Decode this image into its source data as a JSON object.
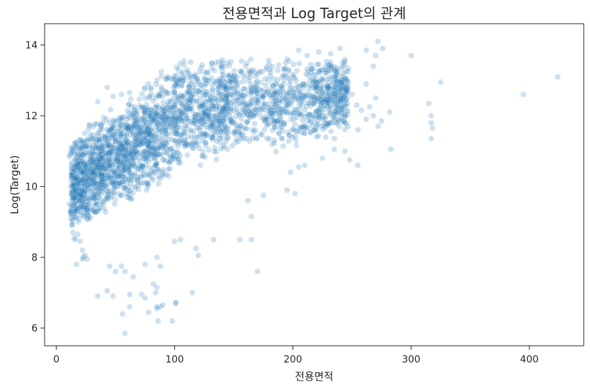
{
  "chart_data": {
    "type": "scatter",
    "title": "전용면적과 Log Target의 관계",
    "xlabel": "전용면적",
    "ylabel": "Log(Target)",
    "xlim": [
      -10,
      446
    ],
    "ylim": [
      5.5,
      14.6
    ],
    "xticks": [
      0,
      100,
      200,
      300,
      400
    ],
    "yticks": [
      6,
      8,
      10,
      12,
      14
    ],
    "grid": false,
    "legend": "none",
    "point_color": "#1f77b4",
    "point_opacity": 0.22,
    "series": [
      {
        "points": [
          [
            11,
            10.85
          ],
          [
            12,
            10.95
          ],
          [
            13,
            11.0
          ],
          [
            14,
            11.1
          ],
          [
            15,
            11.2
          ],
          [
            16,
            11.25
          ],
          [
            17,
            11.15
          ],
          [
            11,
            9.5
          ],
          [
            12,
            9.3
          ],
          [
            13,
            8.9
          ],
          [
            14,
            8.7
          ],
          [
            15,
            8.55
          ],
          [
            16,
            8.5
          ],
          [
            18,
            8.65
          ],
          [
            20,
            8.45
          ],
          [
            22,
            8.2
          ],
          [
            23,
            8.0
          ],
          [
            24,
            8.05
          ],
          [
            26,
            7.95
          ],
          [
            17,
            7.8
          ],
          [
            22,
            7.95
          ],
          [
            35,
            6.9
          ],
          [
            43,
            7.05
          ],
          [
            48,
            6.9
          ],
          [
            58,
            5.85
          ],
          [
            56,
            6.4
          ],
          [
            62,
            6.6
          ],
          [
            62,
            6.95
          ],
          [
            72,
            6.95
          ],
          [
            75,
            6.85
          ],
          [
            78,
            6.45
          ],
          [
            84,
            7.0
          ],
          [
            85,
            7.15
          ],
          [
            85,
            6.55
          ],
          [
            85,
            6.6
          ],
          [
            86,
            6.2
          ],
          [
            88,
            6.6
          ],
          [
            90,
            6.65
          ],
          [
            98,
            6.2
          ],
          [
            101,
            6.7
          ],
          [
            101,
            6.72
          ],
          [
            115,
            7.0
          ],
          [
            45,
            7.75
          ],
          [
            50,
            7.6
          ],
          [
            55,
            7.75
          ],
          [
            58,
            7.6
          ],
          [
            65,
            7.45
          ],
          [
            75,
            7.8
          ],
          [
            82,
            7.25
          ],
          [
            85,
            8.0
          ],
          [
            88,
            7.75
          ],
          [
            100,
            8.45
          ],
          [
            105,
            8.5
          ],
          [
            118,
            8.25
          ],
          [
            120,
            8.05
          ],
          [
            133,
            8.5
          ],
          [
            155,
            8.5
          ],
          [
            165,
            8.5
          ],
          [
            165,
            9.15
          ],
          [
            170,
            7.6
          ],
          [
            162,
            9.6
          ],
          [
            175,
            9.75
          ],
          [
            195,
            9.9
          ],
          [
            202,
            9.8
          ],
          [
            198,
            10.4
          ],
          [
            205,
            10.55
          ],
          [
            210,
            10.6
          ],
          [
            225,
            10.8
          ],
          [
            235,
            11.05
          ],
          [
            244,
            11.0
          ],
          [
            248,
            10.75
          ],
          [
            255,
            10.6
          ],
          [
            262,
            11.9
          ],
          [
            265,
            12.25
          ],
          [
            262,
            12.9
          ],
          [
            268,
            13.4
          ],
          [
            270,
            13.7
          ],
          [
            272,
            14.1
          ],
          [
            276,
            13.9
          ],
          [
            262,
            13.85
          ],
          [
            245,
            12.7
          ],
          [
            242,
            13.5
          ],
          [
            240,
            13.9
          ],
          [
            232,
            13.75
          ],
          [
            222,
            13.8
          ],
          [
            212,
            13.7
          ],
          [
            205,
            13.85
          ],
          [
            195,
            13.6
          ],
          [
            180,
            13.45
          ],
          [
            160,
            13.4
          ],
          [
            140,
            13.5
          ],
          [
            122,
            13.35
          ],
          [
            103,
            13.3
          ],
          [
            85,
            13.0
          ],
          [
            75,
            12.8
          ],
          [
            62,
            12.65
          ],
          [
            55,
            12.6
          ],
          [
            48,
            12.55
          ],
          [
            43,
            12.8
          ],
          [
            35,
            12.4
          ],
          [
            28,
            11.75
          ],
          [
            24,
            11.5
          ],
          [
            270,
            12.5
          ],
          [
            268,
            12.0
          ],
          [
            272,
            11.7
          ],
          [
            275,
            11.85
          ],
          [
            282,
            12.1
          ],
          [
            283,
            11.05
          ],
          [
            258,
            12.15
          ],
          [
            254,
            12.3
          ],
          [
            250,
            12.6
          ],
          [
            255,
            11.6
          ],
          [
            300,
            13.7
          ],
          [
            315,
            12.35
          ],
          [
            317,
            12.0
          ],
          [
            317,
            11.8
          ],
          [
            318,
            11.65
          ],
          [
            317,
            11.35
          ],
          [
            325,
            12.95
          ],
          [
            395,
            12.6
          ],
          [
            424,
            13.1
          ]
        ]
      }
    ]
  }
}
